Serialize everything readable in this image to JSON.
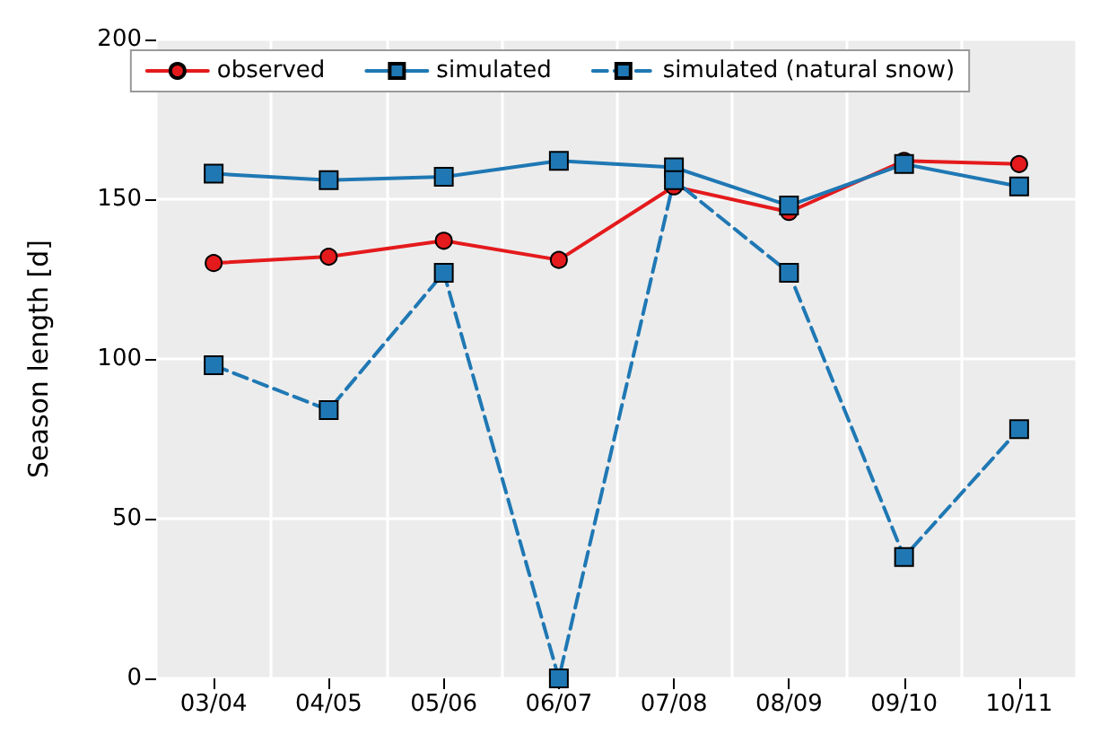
{
  "chart_data": {
    "type": "line",
    "ylabel": "Season length [d]",
    "categories": [
      "03/04",
      "04/05",
      "05/06",
      "06/07",
      "07/08",
      "08/09",
      "09/10",
      "10/11"
    ],
    "series": [
      {
        "name": "observed",
        "color": "#e41a1c",
        "marker": "circle",
        "line_style": "solid",
        "values": [
          130,
          132,
          137,
          131,
          154,
          146,
          162,
          161
        ]
      },
      {
        "name": "simulated",
        "color": "#1f78b4",
        "marker": "square",
        "line_style": "solid",
        "values": [
          158,
          156,
          157,
          162,
          160,
          148,
          161,
          154
        ]
      },
      {
        "name": "simulated (natural snow)",
        "color": "#1f78b4",
        "marker": "square",
        "line_style": "dashed",
        "values": [
          98,
          84,
          127,
          0,
          156,
          127,
          38,
          78
        ]
      }
    ],
    "ylim": [
      0,
      200
    ],
    "yticks": [
      0,
      50,
      100,
      150,
      200
    ],
    "grid": true,
    "legend": "top"
  }
}
